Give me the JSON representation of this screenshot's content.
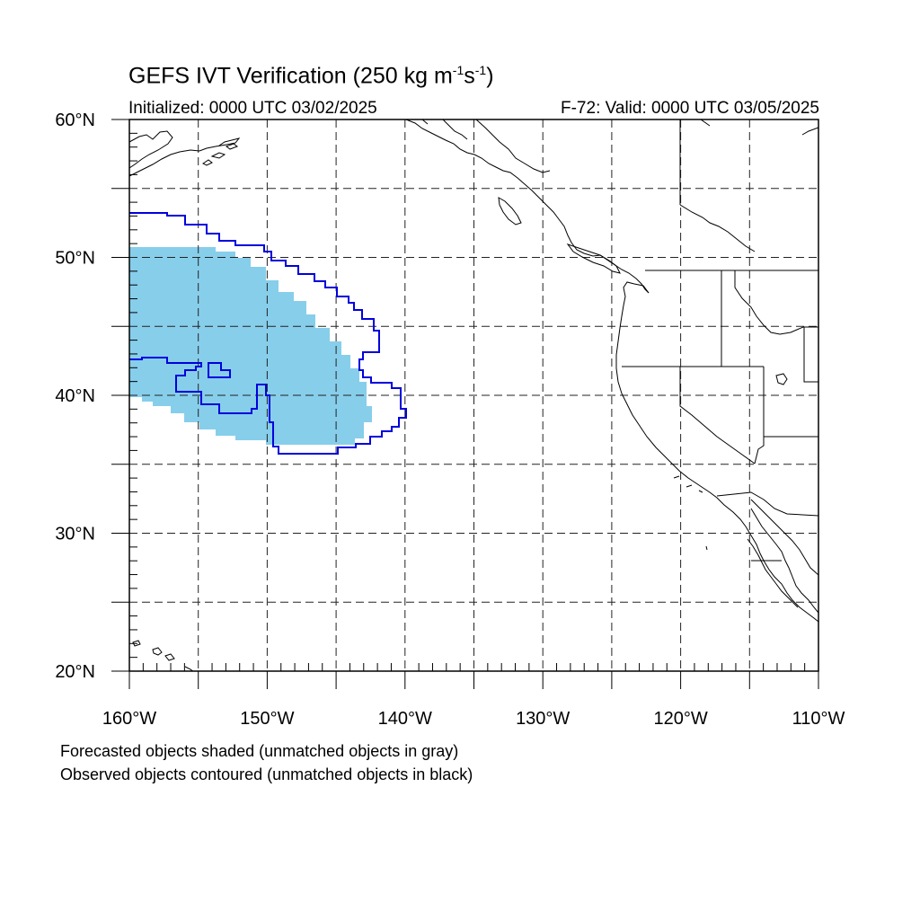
{
  "title": {
    "main": "GEFS IVT Verification (250 kg m",
    "exp1": "-1",
    "mid": "s",
    "exp2": "-1",
    "end": ")"
  },
  "subtitle": {
    "left": "Initialized: 0000 UTC 03/02/2025",
    "right": "F-72: Valid: 0000 UTC 03/05/2025"
  },
  "map": {
    "lon_range": [
      -160,
      -110
    ],
    "lat_range": [
      20,
      60
    ],
    "lat_ticks": [
      {
        "lat": 60,
        "label": "60°N"
      },
      {
        "lat": 50,
        "label": "50°N"
      },
      {
        "lat": 40,
        "label": "40°N"
      },
      {
        "lat": 30,
        "label": "30°N"
      },
      {
        "lat": 20,
        "label": "20°N"
      }
    ],
    "lon_ticks": [
      {
        "lon": -160,
        "label": "160°W"
      },
      {
        "lon": -150,
        "label": "150°W"
      },
      {
        "lon": -140,
        "label": "140°W"
      },
      {
        "lon": -130,
        "label": "130°W"
      },
      {
        "lon": -120,
        "label": "120°W"
      },
      {
        "lon": -110,
        "label": "110°W"
      }
    ],
    "grid_lines": "dashed, every 5 degrees",
    "forecast_color": "#87ceeb",
    "observed_color": "#0000dd"
  },
  "notes": [
    "Forecasted objects shaded (unmatched objects in gray)",
    "Observed objects contoured (unmatched objects in black)"
  ]
}
